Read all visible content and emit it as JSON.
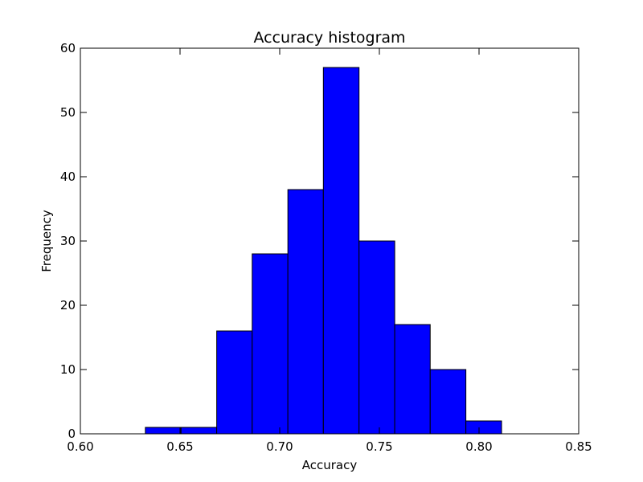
{
  "chart_data": {
    "type": "bar",
    "title": "Accuracy histogram",
    "xlabel": "Accuracy",
    "ylabel": "Frequency",
    "xlim": [
      0.6,
      0.85
    ],
    "ylim": [
      0,
      60
    ],
    "x_ticks": [
      "0.60",
      "0.65",
      "0.70",
      "0.75",
      "0.80",
      "0.85"
    ],
    "y_ticks": [
      "0",
      "10",
      "20",
      "30",
      "40",
      "50",
      "60"
    ],
    "bin_edges": [
      0.6326,
      0.6505,
      0.6684,
      0.6862,
      0.7041,
      0.7219,
      0.7398,
      0.7577,
      0.7755,
      0.7934,
      0.8113
    ],
    "values": [
      1,
      1,
      16,
      28,
      38,
      57,
      30,
      17,
      10,
      2
    ],
    "bar_color": "#0000ff",
    "edge_color": "#000000",
    "grid": false,
    "legend": "none"
  }
}
